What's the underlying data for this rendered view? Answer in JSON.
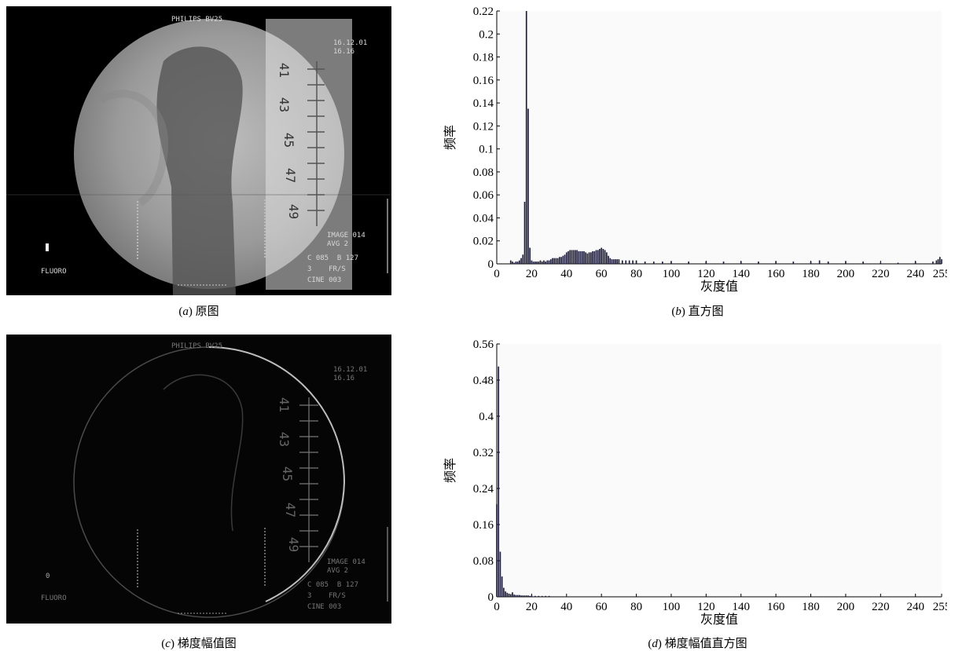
{
  "panels": {
    "a": {
      "caption_letter": "a",
      "caption_text": "原图",
      "overlay": {
        "brand": "PHILIPS BV25",
        "date": "16.12.01",
        "time": "16.16",
        "mode": "FLUORO",
        "info_lines": [
          "IMAGE 014",
          "AVG 2",
          "C 085  B 127",
          "3    FR/S",
          "CINE 003"
        ],
        "scale_numbers": [
          "41",
          "43",
          "45",
          "47",
          "49"
        ]
      }
    },
    "b": {
      "caption_letter": "b",
      "caption_text": "直方图"
    },
    "c": {
      "caption_letter": "c",
      "caption_text": "梯度幅值图",
      "overlay": {
        "brand": "PHILIPS BV25",
        "date": "16.12.01",
        "time": "16.16",
        "mode": "FLUORO",
        "info_lines": [
          "IMAGE 014",
          "AVG 2",
          "C 085  B 127",
          "3    FR/S",
          "CINE 003"
        ],
        "scale_numbers": [
          "41",
          "43",
          "45",
          "47",
          "49"
        ]
      }
    },
    "d": {
      "caption_letter": "d",
      "caption_text": "梯度幅值直方图"
    }
  },
  "chart_data": [
    {
      "type": "bar",
      "panel": "b",
      "xlabel": "灰度值",
      "ylabel": "频率",
      "xlim": [
        0,
        255
      ],
      "ylim": [
        0,
        0.22
      ],
      "xticks": [
        0,
        20,
        40,
        60,
        80,
        100,
        120,
        140,
        160,
        180,
        200,
        220,
        240,
        255
      ],
      "yticks": [
        0,
        0.02,
        0.04,
        0.06,
        0.08,
        0.1,
        0.12,
        0.14,
        0.16,
        0.18,
        0.2,
        0.22
      ],
      "x": [
        8,
        9,
        10,
        11,
        12,
        13,
        14,
        15,
        16,
        17,
        18,
        19,
        20,
        21,
        22,
        23,
        24,
        25,
        26,
        27,
        28,
        29,
        30,
        31,
        32,
        33,
        34,
        35,
        36,
        37,
        38,
        39,
        40,
        41,
        42,
        43,
        44,
        45,
        46,
        47,
        48,
        49,
        50,
        51,
        52,
        53,
        54,
        55,
        56,
        57,
        58,
        59,
        60,
        61,
        62,
        63,
        64,
        65,
        66,
        67,
        68,
        69,
        70,
        72,
        74,
        76,
        78,
        80,
        85,
        90,
        95,
        100,
        110,
        120,
        130,
        140,
        150,
        160,
        170,
        180,
        185,
        190,
        200,
        210,
        220,
        230,
        240,
        250,
        252,
        253,
        254,
        255
      ],
      "values": [
        0.003,
        0.002,
        0.001,
        0.002,
        0.002,
        0.003,
        0.005,
        0.008,
        0.054,
        0.22,
        0.135,
        0.014,
        0.003,
        0.002,
        0.002,
        0.002,
        0.002,
        0.003,
        0.002,
        0.003,
        0.002,
        0.003,
        0.003,
        0.004,
        0.005,
        0.005,
        0.005,
        0.005,
        0.006,
        0.006,
        0.007,
        0.008,
        0.01,
        0.011,
        0.012,
        0.012,
        0.012,
        0.012,
        0.012,
        0.011,
        0.011,
        0.011,
        0.011,
        0.01,
        0.009,
        0.01,
        0.01,
        0.011,
        0.011,
        0.012,
        0.012,
        0.013,
        0.014,
        0.013,
        0.012,
        0.01,
        0.007,
        0.005,
        0.004,
        0.004,
        0.004,
        0.004,
        0.004,
        0.003,
        0.003,
        0.003,
        0.003,
        0.003,
        0.002,
        0.002,
        0.002,
        0.002,
        0.002,
        0.002,
        0.002,
        0.002,
        0.002,
        0.002,
        0.002,
        0.002,
        0.003,
        0.002,
        0.002,
        0.002,
        0.001,
        0.001,
        0.002,
        0.002,
        0.003,
        0.004,
        0.006,
        0.004
      ]
    },
    {
      "type": "bar",
      "panel": "d",
      "xlabel": "灰度值",
      "ylabel": "频率",
      "xlim": [
        0,
        255
      ],
      "ylim": [
        0,
        0.56
      ],
      "xticks": [
        0,
        20,
        40,
        60,
        80,
        100,
        120,
        140,
        160,
        180,
        200,
        220,
        240,
        255
      ],
      "yticks": [
        0,
        0.08,
        0.16,
        0.24,
        0.32,
        0.4,
        0.48,
        0.56
      ],
      "x": [
        0,
        1,
        2,
        3,
        4,
        5,
        6,
        7,
        8,
        9,
        10,
        11,
        12,
        13,
        14,
        15,
        16,
        17,
        18,
        19,
        20,
        22,
        24,
        26,
        28,
        30,
        32,
        35,
        40,
        45,
        50
      ],
      "values": [
        0.205,
        0.51,
        0.1,
        0.045,
        0.02,
        0.012,
        0.009,
        0.007,
        0.006,
        0.01,
        0.005,
        0.004,
        0.004,
        0.004,
        0.003,
        0.003,
        0.003,
        0.003,
        0.003,
        0.002,
        0.003,
        0.002,
        0.002,
        0.002,
        0.002,
        0.002,
        0.001,
        0.001,
        0.001,
        0.001,
        0.001
      ]
    }
  ]
}
